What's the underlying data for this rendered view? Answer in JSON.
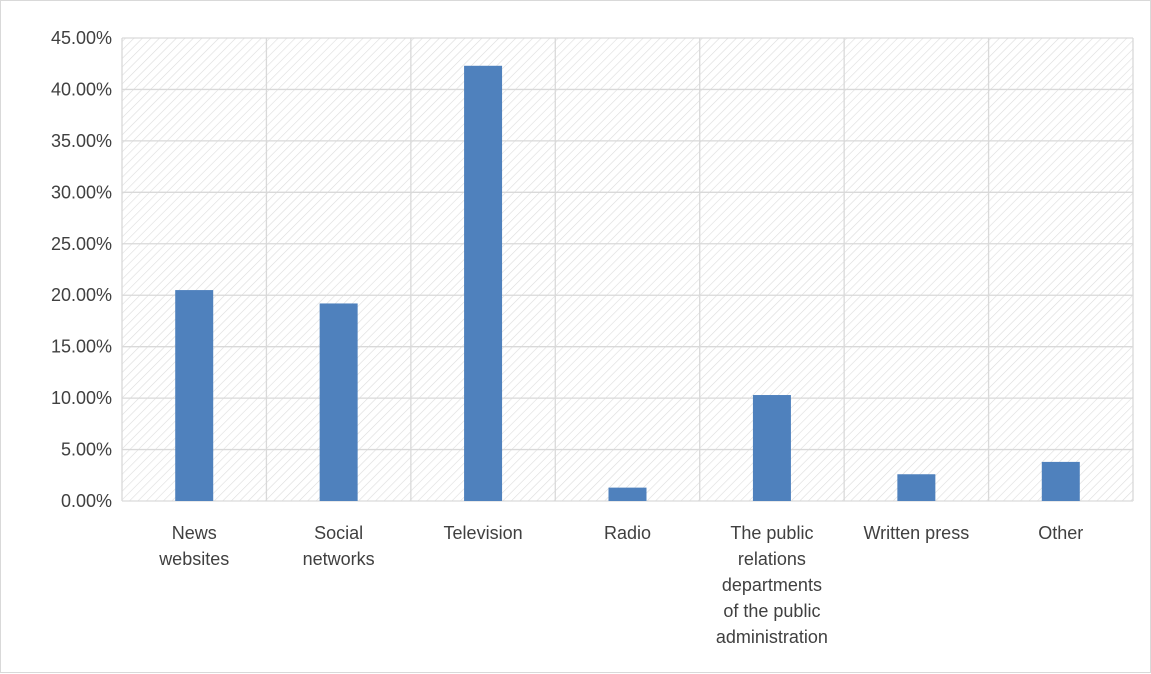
{
  "chart_data": {
    "type": "bar",
    "categories": [
      [
        "News",
        "websites"
      ],
      [
        "Social",
        "networks"
      ],
      [
        "Television"
      ],
      [
        "Radio"
      ],
      [
        "The public",
        "relations",
        "departments",
        "of the public",
        "administration"
      ],
      [
        "Written press"
      ],
      [
        "Other"
      ]
    ],
    "values": [
      20.5,
      19.2,
      42.3,
      1.3,
      10.3,
      2.6,
      3.8
    ],
    "ylim": [
      0,
      45
    ],
    "yticks": [
      "0.00%",
      "5.00%",
      "10.00%",
      "15.00%",
      "20.00%",
      "25.00%",
      "30.00%",
      "35.00%",
      "40.00%",
      "45.00%"
    ],
    "title": "",
    "xlabel": "",
    "ylabel": "",
    "grid": true,
    "legend": "none",
    "bar_color": "#4f81bd",
    "grid_color": "#d9d9d9",
    "plot_pattern": "diagonal-hatch"
  }
}
